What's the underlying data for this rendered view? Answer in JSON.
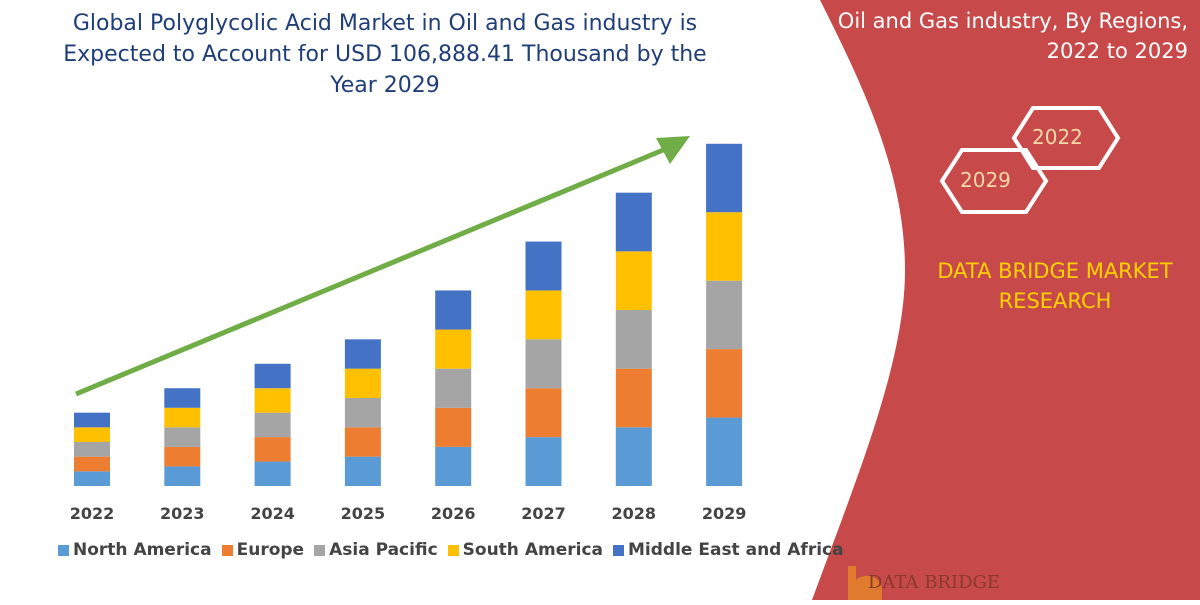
{
  "title": "Global Polyglycolic Acid Market in Oil and Gas industry is Expected to Account for USD 106,888.41 Thousand by the Year 2029",
  "right_panel": {
    "heading_line1": "Oil and Gas industry, By Regions,",
    "heading_line2": "2022 to 2029",
    "hex_labels": [
      "2022",
      "2029"
    ],
    "brand_line1": "DATA BRIDGE MARKET",
    "brand_line2": "RESEARCH",
    "logo_text": "DATA BRIDGE",
    "colors": {
      "panel": "#c8494a",
      "brand_text": "#ffd200"
    }
  },
  "chart_data": {
    "type": "bar",
    "stacked": true,
    "categories": [
      "2022",
      "2023",
      "2024",
      "2025",
      "2026",
      "2027",
      "2028",
      "2029"
    ],
    "series": [
      {
        "name": "North America",
        "color": "#5b9bd5",
        "values": [
          3,
          4,
          5,
          6,
          8,
          10,
          12,
          14
        ]
      },
      {
        "name": "Europe",
        "color": "#ed7d31",
        "values": [
          3,
          4,
          5,
          6,
          8,
          10,
          12,
          14
        ]
      },
      {
        "name": "Asia Pacific",
        "color": "#a5a5a5",
        "values": [
          3,
          4,
          5,
          6,
          8,
          10,
          12,
          14
        ]
      },
      {
        "name": "South America",
        "color": "#ffc000",
        "values": [
          3,
          4,
          5,
          6,
          8,
          10,
          12,
          14
        ]
      },
      {
        "name": "Middle East and Africa",
        "color": "#4472c4",
        "values": [
          3,
          4,
          5,
          6,
          8,
          10,
          12,
          14
        ]
      }
    ],
    "ylim": [
      0,
      72
    ],
    "grid": false,
    "legend": "bottom",
    "trend_arrow_color": "#70ad47"
  }
}
